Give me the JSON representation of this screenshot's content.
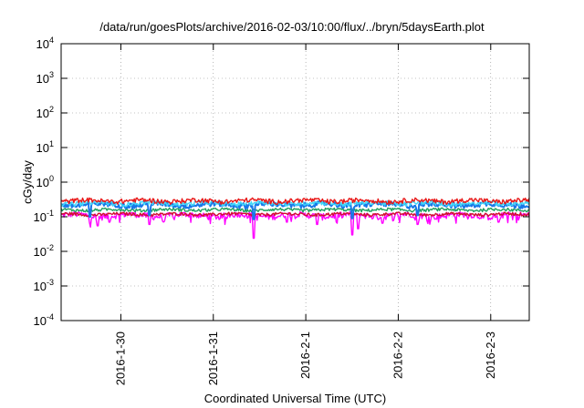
{
  "chart_data": {
    "type": "line",
    "title": "/data/run/goesPlots/archive/2016-02-03/10:00/flux/../bryn/5daysEarth.plot",
    "xlabel": "Coordinated Universal Time (UTC)",
    "ylabel": "cGy/day",
    "yscale": "log",
    "ylim": [
      0.0001,
      10000
    ],
    "y_ticks": [
      {
        "value": 0.0001,
        "base": "10",
        "exp": "-4"
      },
      {
        "value": 0.001,
        "base": "10",
        "exp": "-3"
      },
      {
        "value": 0.01,
        "base": "10",
        "exp": "-2"
      },
      {
        "value": 0.1,
        "base": "10",
        "exp": "-1"
      },
      {
        "value": 1,
        "base": "10",
        "exp": "0"
      },
      {
        "value": 10,
        "base": "10",
        "exp": "1"
      },
      {
        "value": 100,
        "base": "10",
        "exp": "2"
      },
      {
        "value": 1000,
        "base": "10",
        "exp": "3"
      },
      {
        "value": 10000,
        "base": "10",
        "exp": "4"
      }
    ],
    "xlim": [
      "2016-01-29 08:30",
      "2016-02-03 10:00"
    ],
    "x_ticks": [
      {
        "value": "2016-01-30 00:00",
        "label": "2016-1-30"
      },
      {
        "value": "2016-01-31 00:00",
        "label": "2016-1-31"
      },
      {
        "value": "2016-02-01 00:00",
        "label": "2016-2-1"
      },
      {
        "value": "2016-02-02 00:00",
        "label": "2016-2-2"
      },
      {
        "value": "2016-02-03 00:00",
        "label": "2016-2-3"
      }
    ],
    "grid": true,
    "legend": "none",
    "series": [
      {
        "color": "#ff00ff",
        "base": 0.11,
        "spread": 0.022,
        "dips": [
          [
            "2016-01-29 16:00",
            0.05
          ],
          [
            "2016-01-29 18:00",
            0.055
          ],
          [
            "2016-01-29 21:00",
            0.07
          ],
          [
            "2016-01-30 07:30",
            0.06
          ],
          [
            "2016-01-30 11:00",
            0.07
          ],
          [
            "2016-01-31 03:00",
            0.06
          ],
          [
            "2016-01-31 10:30",
            0.024
          ],
          [
            "2016-01-31 19:00",
            0.07
          ],
          [
            "2016-02-01 03:00",
            0.06
          ],
          [
            "2016-02-01 08:00",
            0.065
          ],
          [
            "2016-02-01 12:00",
            0.03
          ],
          [
            "2016-02-01 13:30",
            0.045
          ],
          [
            "2016-02-01 20:00",
            0.065
          ],
          [
            "2016-02-02 05:00",
            0.06
          ],
          [
            "2016-02-02 15:00",
            0.065
          ],
          [
            "2016-02-03 02:00",
            0.07
          ]
        ]
      },
      {
        "color": "#d01030",
        "base": 0.118,
        "spread": 0.012,
        "dips": []
      },
      {
        "color": "#20a060",
        "base": 0.158,
        "spread": 0.016,
        "dips": []
      },
      {
        "color": "#1878e8",
        "base": 0.225,
        "spread": 0.04,
        "dips": [
          [
            "2016-01-29 16:00",
            0.1
          ],
          [
            "2016-01-30 07:30",
            0.11
          ],
          [
            "2016-01-31 10:30",
            0.085
          ],
          [
            "2016-02-01 12:00",
            0.09
          ],
          [
            "2016-02-02 05:00",
            0.11
          ]
        ]
      },
      {
        "color": "#40d8f8",
        "base": 0.245,
        "spread": 0.035,
        "dips": []
      },
      {
        "color": "#e81818",
        "base": 0.29,
        "spread": 0.045,
        "dips": []
      }
    ]
  }
}
